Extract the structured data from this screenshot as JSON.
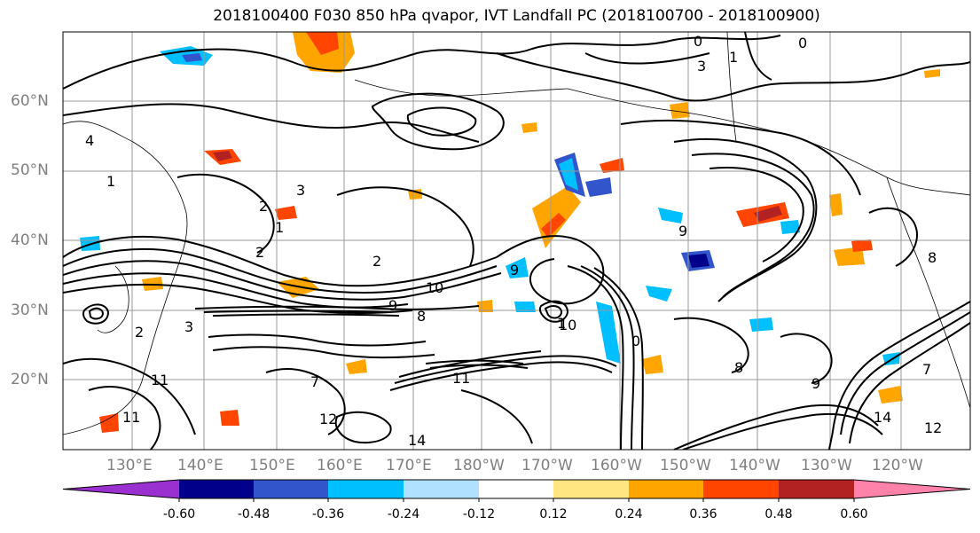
{
  "title": "2018100400 F030 850 hPa qvapor, IVT Landfall PC (2018100700 - 2018100900)",
  "lat_labels": [
    "60°N",
    "50°N",
    "40°N",
    "30°N",
    "20°N"
  ],
  "lon_labels": [
    "130°E",
    "140°E",
    "150°E",
    "160°E",
    "170°E",
    "180°W",
    "170°W",
    "160°W",
    "150°W",
    "140°W",
    "130°W",
    "120°W"
  ],
  "colorbar": {
    "labels": [
      "-0.60",
      "-0.48",
      "-0.36",
      "-0.24",
      "-0.12",
      "0.12",
      "0.24",
      "0.36",
      "0.48",
      "0.60"
    ],
    "colors": [
      "#9b30d0",
      "#00008b",
      "#3355cc",
      "#00bfff",
      "#b0e2ff",
      "#ffffff",
      "#ffe680",
      "#ffa500",
      "#ff4500",
      "#b22222",
      "#ff82ab"
    ]
  },
  "contour_labels": [
    {
      "text": "0"
    },
    {
      "text": "1"
    },
    {
      "text": "0"
    },
    {
      "text": "3"
    },
    {
      "text": "4"
    },
    {
      "text": "1"
    },
    {
      "text": "3"
    },
    {
      "text": "2"
    },
    {
      "text": "1"
    },
    {
      "text": "2"
    },
    {
      "text": "2"
    },
    {
      "text": "10"
    },
    {
      "text": "10"
    },
    {
      "text": "9"
    },
    {
      "text": "9"
    },
    {
      "text": "8"
    },
    {
      "text": "11"
    },
    {
      "text": "7"
    },
    {
      "text": "11"
    },
    {
      "text": "11"
    },
    {
      "text": "14"
    },
    {
      "text": "14"
    },
    {
      "text": "12"
    },
    {
      "text": "12"
    },
    {
      "text": "9"
    },
    {
      "text": "8"
    },
    {
      "text": "9"
    },
    {
      "text": "0"
    },
    {
      "text": "1"
    },
    {
      "text": "7"
    },
    {
      "text": "8"
    },
    {
      "text": "2"
    },
    {
      "text": "3"
    }
  ]
}
